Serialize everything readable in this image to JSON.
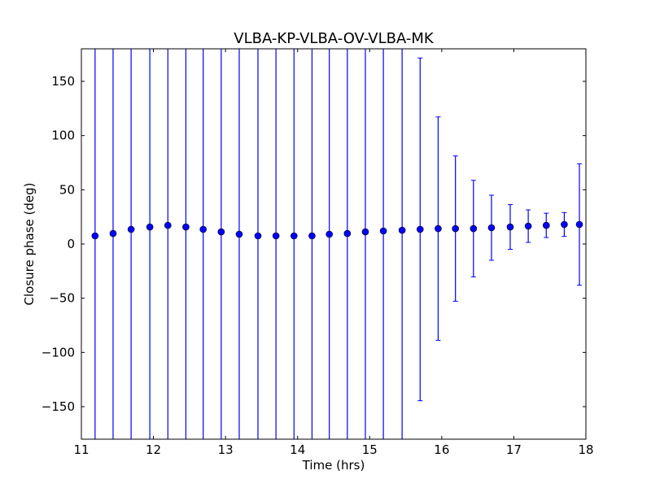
{
  "chart_data": {
    "type": "scatter",
    "title": "VLBA-KP-VLBA-OV-VLBA-MK",
    "xlabel": "Time (hrs)",
    "ylabel": "Closure phase (deg)",
    "xlim": [
      11,
      18
    ],
    "ylim": [
      -180,
      180
    ],
    "xticks": [
      11,
      12,
      13,
      14,
      15,
      16,
      17,
      18
    ],
    "yticks": [
      -150,
      -100,
      -50,
      0,
      50,
      100,
      150
    ],
    "ytick_labels": [
      "−150",
      "−100",
      "−50",
      "0",
      "50",
      "100",
      "150"
    ],
    "grid": false,
    "marker_color": "#0000ff",
    "series": [
      {
        "name": "closure phase",
        "x": [
          11.19,
          11.44,
          11.69,
          11.95,
          12.2,
          12.45,
          12.69,
          12.94,
          13.19,
          13.45,
          13.7,
          13.95,
          14.2,
          14.44,
          14.69,
          14.94,
          15.19,
          15.45,
          15.7,
          15.95,
          16.19,
          16.44,
          16.69,
          16.95,
          17.2,
          17.45,
          17.7,
          17.91
        ],
        "y": [
          7.5,
          9.7,
          13.5,
          15.7,
          17.2,
          15.7,
          13.5,
          11.2,
          9.0,
          7.5,
          7.5,
          7.5,
          7.5,
          9.0,
          9.7,
          11.2,
          12.0,
          12.7,
          13.5,
          14.2,
          14.2,
          14.2,
          15.0,
          15.7,
          16.5,
          17.2,
          18.0,
          18.0
        ],
        "yerr": [
          400,
          400,
          400,
          400,
          400,
          400,
          400,
          400,
          400,
          400,
          400,
          400,
          400,
          400,
          400,
          400,
          400,
          400,
          158,
          103,
          67,
          44.5,
          30,
          20.6,
          15,
          11.2,
          11,
          56
        ]
      }
    ]
  }
}
